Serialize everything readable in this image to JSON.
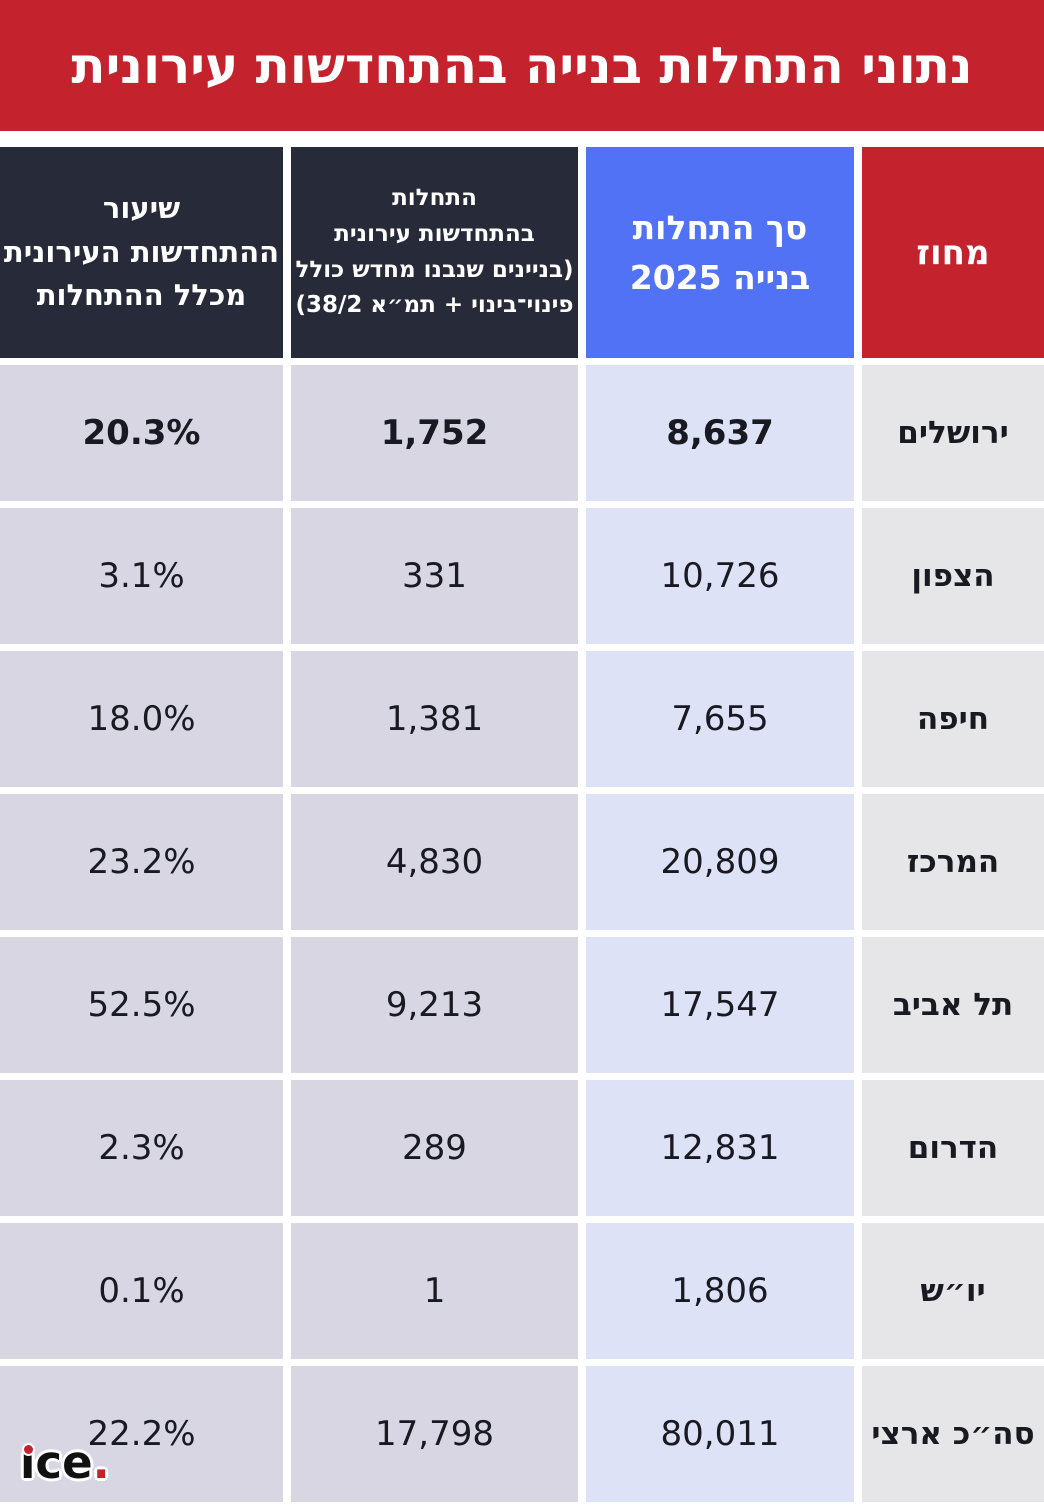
{
  "title": "נתוני התחלות בנייה בהתחדשות עירונית",
  "colors": {
    "red": "#c4232d",
    "dark": "#272a38",
    "blue": "#5272f5",
    "blue-light": "#dee2f6",
    "lavender": "#d7d6e2",
    "gray": "#e6e5e8",
    "ink": "#191922"
  },
  "table": {
    "headers": {
      "district": "מחוז",
      "total": "סך התחלות\nבנייה 2025",
      "renewal": "התחלות\nבהתחדשות עירונית\n(בניינים שנבנו מחדש כולל\nפינוי־בינוי + תמ״א 38/2)",
      "share": "שיעור\nההתחדשות העירונית\nמכלל ההתחלות"
    },
    "rows": [
      {
        "district": "ירושלים",
        "total": "8,637",
        "renewal": "1,752",
        "share": "20.3%"
      },
      {
        "district": "הצפון",
        "total": "10,726",
        "renewal": "331",
        "share": "3.1%"
      },
      {
        "district": "חיפה",
        "total": "7,655",
        "renewal": "1,381",
        "share": "18.0%"
      },
      {
        "district": "המרכז",
        "total": "20,809",
        "renewal": "4,830",
        "share": "23.2%"
      },
      {
        "district": "תל אביב",
        "total": "17,547",
        "renewal": "9,213",
        "share": "52.5%"
      },
      {
        "district": "הדרום",
        "total": "12,831",
        "renewal": "289",
        "share": "2.3%"
      },
      {
        "district": "יו״ש",
        "total": "1,806",
        "renewal": "1",
        "share": "0.1%"
      },
      {
        "district": "סה״כ ארצי",
        "total": "80,011",
        "renewal": "17,798",
        "share": "22.2%"
      }
    ]
  },
  "logo": {
    "base": "ıce",
    "period": "."
  },
  "chart_data": {
    "type": "table",
    "title": "נתוני התחלות בנייה בהתחדשות עירונית",
    "columns": [
      "מחוז",
      "סך התחלות בנייה 2025",
      "התחלות בהתחדשות עירונית (בניינים שנבנו מחדש כולל פינוי־בינוי + תמ״א 38/2)",
      "שיעור ההתחדשות העירונית מכלל ההתחלות"
    ],
    "rows": [
      [
        "ירושלים",
        8637,
        1752,
        "20.3%"
      ],
      [
        "הצפון",
        10726,
        331,
        "3.1%"
      ],
      [
        "חיפה",
        7655,
        1381,
        "18.0%"
      ],
      [
        "המרכז",
        20809,
        4830,
        "23.2%"
      ],
      [
        "תל אביב",
        17547,
        9213,
        "52.5%"
      ],
      [
        "הדרום",
        12831,
        289,
        "2.3%"
      ],
      [
        "יו״ש",
        1806,
        1,
        "0.1%"
      ],
      [
        "סה״כ ארצי",
        80011,
        17798,
        "22.2%"
      ]
    ],
    "notes": "Infographic table, RTL Hebrew; header row on top, district column on right; totals row at bottom"
  }
}
